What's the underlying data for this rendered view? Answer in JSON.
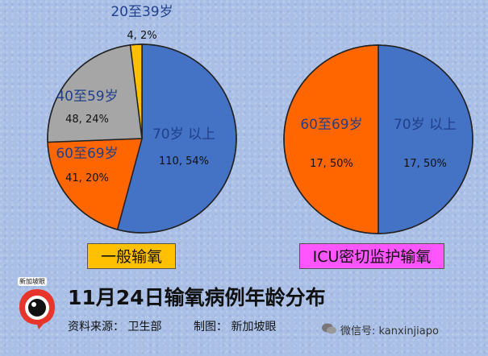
{
  "chart_data": [
    {
      "type": "pie",
      "category_label": "一般输氧",
      "slices": [
        {
          "label": "70岁 以上",
          "count": 110,
          "percent": 54,
          "value_label": "110, 54%",
          "color": "#4472c4"
        },
        {
          "label": "60至69岁",
          "count": 41,
          "percent": 20,
          "value_label": "41, 20%",
          "color": "#ff6600"
        },
        {
          "label": "40至59岁",
          "count": 48,
          "percent": 24,
          "value_label": "48, 24%",
          "color": "#a6a6a6"
        },
        {
          "label": "20至39岁",
          "count": 4,
          "percent": 2,
          "value_label": "4, 2%",
          "color": "#ffc000"
        }
      ]
    },
    {
      "type": "pie",
      "category_label": "ICU密切监护输氧",
      "slices": [
        {
          "label": "70岁 以上",
          "count": 17,
          "percent": 50,
          "value_label": "17, 50%",
          "color": "#4472c4"
        },
        {
          "label": "60至69岁",
          "count": 17,
          "percent": 50,
          "value_label": "17, 50%",
          "color": "#ff6600"
        }
      ]
    }
  ],
  "footer": {
    "title": "11月24日输氧病例年龄分布",
    "source": "资料来源：  卫生部",
    "credit": "制图：  新加坡眼",
    "logo_text": "新加坡眼",
    "wechat": "微信号: kanxinjiapo"
  },
  "colors": {
    "category_box_1": "#ffc000",
    "category_box_2": "#ff55ff",
    "label_blue_text": "#1f3f8c"
  }
}
